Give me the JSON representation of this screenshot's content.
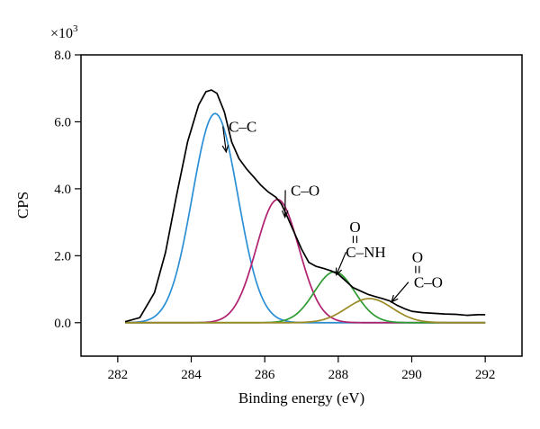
{
  "chart_data": {
    "type": "line",
    "title": "",
    "xlabel": "Binding energy (eV)",
    "ylabel": "CPS",
    "y_multiplier_label": "×10",
    "y_multiplier_exp": "3",
    "xlim": [
      281,
      293
    ],
    "ylim": [
      -1.0,
      8.0
    ],
    "x_ticks": [
      282,
      284,
      286,
      288,
      290,
      292
    ],
    "x_tick_labels": [
      "282",
      "284",
      "286",
      "288",
      "290",
      "292"
    ],
    "y_ticks": [
      0.0,
      2.0,
      4.0,
      6.0,
      8.0
    ],
    "y_tick_labels": [
      "0.0",
      "2.0",
      "4.0",
      "6.0",
      "8.0"
    ],
    "grid": false,
    "legend": "none",
    "colors": {
      "envelope": "#000000",
      "c_c": "#2b8fd6",
      "c_o": "#b0206f",
      "c_nh": "#2e9a32",
      "c_o_ester": "#9a8a25",
      "baseline": "#7a7a20"
    },
    "series": [
      {
        "id": "envelope",
        "x": [
          282.2,
          282.6,
          283.0,
          283.3,
          283.6,
          283.9,
          284.2,
          284.4,
          284.55,
          284.7,
          284.9,
          285.1,
          285.3,
          285.5,
          285.7,
          285.9,
          286.1,
          286.3,
          286.45,
          286.6,
          286.8,
          287.0,
          287.2,
          287.4,
          287.6,
          287.8,
          288.0,
          288.2,
          288.4,
          288.6,
          288.8,
          289.0,
          289.2,
          289.4,
          289.6,
          289.8,
          290.0,
          290.3,
          290.6,
          290.9,
          291.2,
          291.5,
          291.8,
          292.0
        ],
        "y": [
          0.03,
          0.15,
          0.9,
          2.1,
          3.8,
          5.4,
          6.5,
          6.9,
          6.95,
          6.85,
          6.3,
          5.4,
          4.9,
          4.6,
          4.35,
          4.1,
          3.9,
          3.75,
          3.55,
          3.2,
          2.7,
          2.2,
          1.8,
          1.68,
          1.62,
          1.55,
          1.45,
          1.25,
          1.05,
          0.95,
          0.85,
          0.78,
          0.72,
          0.65,
          0.52,
          0.42,
          0.34,
          0.3,
          0.28,
          0.26,
          0.25,
          0.22,
          0.24,
          0.24
        ]
      },
      {
        "id": "c_c",
        "name": "C–C",
        "peak_center": 284.65,
        "peak_height": 6.25,
        "peak_sigma": 0.62
      },
      {
        "id": "c_o",
        "name": "C–O",
        "peak_center": 286.35,
        "peak_height": 3.68,
        "peak_sigma": 0.58
      },
      {
        "id": "c_nh",
        "name": "C–NH",
        "peak_center": 287.9,
        "peak_height": 1.52,
        "peak_sigma": 0.55
      },
      {
        "id": "c_o_ester",
        "name": "C–O",
        "peak_center": 288.85,
        "peak_height": 0.72,
        "peak_sigma": 0.62
      }
    ],
    "baseline": {
      "x": [
        282.2,
        292.0
      ],
      "y": [
        0.0,
        0.0
      ]
    },
    "annotations": [
      {
        "id": "label_c_c",
        "text": "C–C",
        "text_x": 285.4,
        "text_y": 5.7,
        "arrow_to_x": 284.95,
        "arrow_to_y": 5.1
      },
      {
        "id": "label_c_o",
        "text": "C–O",
        "text_x": 287.1,
        "text_y": 3.8,
        "arrow_to_x": 286.55,
        "arrow_to_y": 3.15
      },
      {
        "id": "label_c_nh",
        "text": "C–NH",
        "text_x": 288.75,
        "text_y": 1.95,
        "arrow_to_x": 287.95,
        "arrow_to_y": 1.43,
        "superscript": "O"
      },
      {
        "id": "label_c_o_ester",
        "text": "C–O",
        "text_x": 290.45,
        "text_y": 1.05,
        "arrow_to_x": 289.45,
        "arrow_to_y": 0.62,
        "superscript": "O"
      }
    ]
  }
}
